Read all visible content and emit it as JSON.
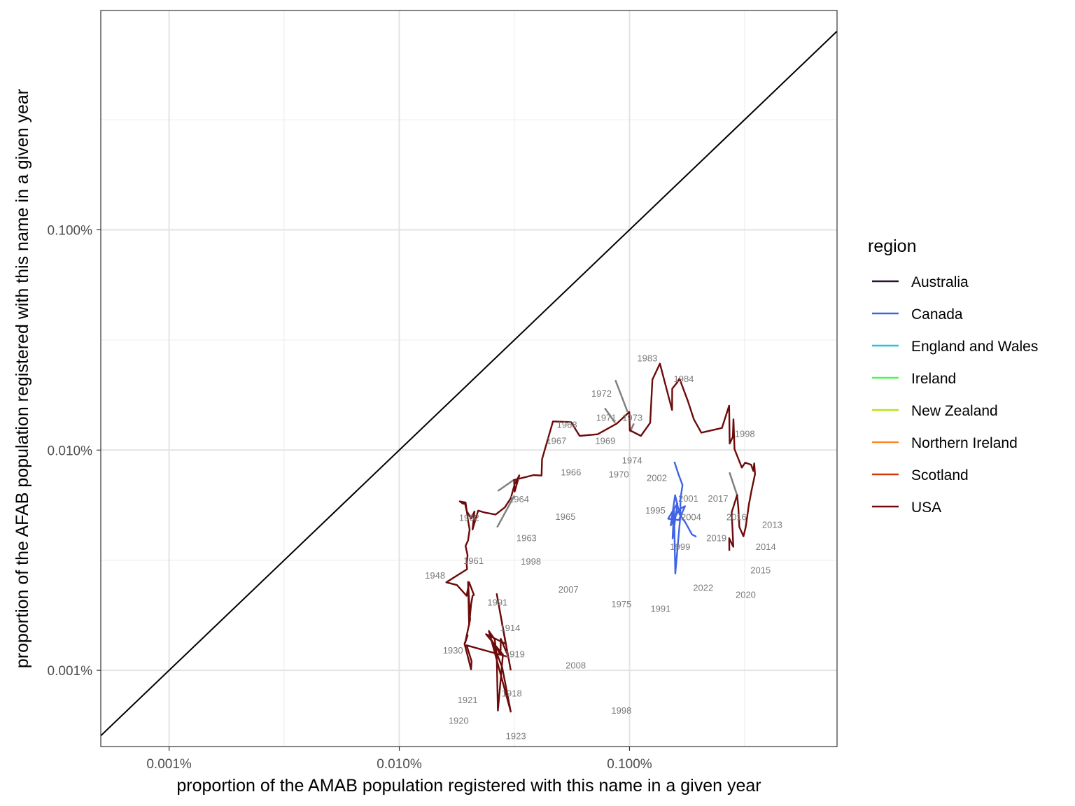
{
  "chart_data": {
    "type": "line",
    "xlabel": "proportion of the AMAB population registered with this name in a given year",
    "ylabel": "proportion of the AFAB population registered with this name in a given year",
    "x_scale": "log10",
    "y_scale": "log10",
    "xlim": [
      5.05e-06,
      0.00797
    ],
    "ylim": [
      4.51e-06,
      0.0099
    ],
    "x_ticks": [
      {
        "value": 1e-05,
        "label": "0.001%"
      },
      {
        "value": 0.0001,
        "label": "0.010%"
      },
      {
        "value": 0.001,
        "label": "0.100%"
      }
    ],
    "y_ticks": [
      {
        "value": 1e-05,
        "label": "0.001%"
      },
      {
        "value": 0.0001,
        "label": "0.010%"
      },
      {
        "value": 0.001,
        "label": "0.100%"
      }
    ],
    "x_minor": [
      3.16e-05,
      0.000316,
      0.00316
    ],
    "y_minor": [
      3.16e-05,
      0.000316,
      0.00316
    ],
    "grid": true,
    "reference_line": "y = x",
    "legend": {
      "title": "region",
      "position": "right",
      "entries": [
        {
          "name": "Australia",
          "color": "#2a1337"
        },
        {
          "name": "Canada",
          "color": "#3f63e6"
        },
        {
          "name": "England and Wales",
          "color": "#1fc6dc"
        },
        {
          "name": "Ireland",
          "color": "#4df55a"
        },
        {
          "name": "New Zealand",
          "color": "#b6e41c"
        },
        {
          "name": "Northern Ireland",
          "color": "#fb8a22"
        },
        {
          "name": "Scotland",
          "color": "#d53a0c"
        },
        {
          "name": "USA",
          "color": "#6d0a0a"
        }
      ]
    },
    "series": [
      {
        "name": "USA",
        "color": "#6d0a0a",
        "points": [
          [
            0.000305,
            1e-05
          ],
          [
            0.000265,
            2.22e-05
          ],
          [
            0.00029,
            1.32e-05
          ],
          [
            0.000238,
            1.46e-05
          ],
          [
            0.000282,
            1.18e-05
          ],
          [
            0.000268,
            6.57e-06
          ],
          [
            0.000265,
            1.14e-05
          ],
          [
            0.00026,
            1.38e-05
          ],
          [
            0.000245,
            1.51e-05
          ],
          [
            0.000305,
            6.49e-06
          ],
          [
            0.00028,
            1.03e-05
          ],
          [
            0.000252,
            1.37e-05
          ],
          [
            0.000275,
            1.18e-05
          ],
          [
            0.000276,
            1.39e-05
          ],
          [
            0.000298,
            1.15e-05
          ],
          [
            0.000196,
            1.3e-05
          ],
          [
            0.000206,
            1.1e-05
          ],
          [
            0.000205,
            1.01e-05
          ],
          [
            0.000197,
            1.19e-05
          ],
          [
            0.000192,
            1.32e-05
          ],
          [
            0.000198,
            1.44e-05
          ],
          [
            0.000193,
            1.33e-05
          ],
          [
            0.000203,
            1.7e-05
          ],
          [
            0.000199,
            2.52e-05
          ],
          [
            0.000201,
            1.6e-05
          ],
          [
            0.000205,
            1.99e-05
          ],
          [
            0.000208,
            2.18e-05
          ],
          [
            0.000211,
            2.2e-05
          ],
          [
            0.000201,
            2.51e-05
          ],
          [
            0.000196,
            2.18e-05
          ],
          [
            0.000178,
            2.44e-05
          ],
          [
            0.00016,
            2.51e-05
          ],
          [
            0.000197,
            2.88e-05
          ],
          [
            0.000196,
            3.05e-05
          ],
          [
            0.000198,
            3.33e-05
          ],
          [
            0.000194,
            3.67e-05
          ],
          [
            0.000199,
            3.89e-05
          ],
          [
            0.000202,
            4.36e-05
          ],
          [
            0.000199,
            4.78e-05
          ],
          [
            0.000198,
            4.99e-05
          ],
          [
            0.000194,
            5.78e-05
          ],
          [
            0.000183,
            5.85e-05
          ],
          [
            0.000189,
            5.71e-05
          ],
          [
            0.000193,
            5.71e-05
          ],
          [
            0.000196,
            5.3e-05
          ],
          [
            0.000205,
            4.89e-05
          ],
          [
            0.000212,
            5.26e-05
          ],
          [
            0.000208,
            4.36e-05
          ],
          [
            0.00022,
            5.31e-05
          ],
          [
            0.000234,
            5.21e-05
          ],
          [
            0.000262,
            5.1e-05
          ],
          [
            0.000287,
            5.49e-05
          ],
          [
            0.000305,
            6.04e-05
          ],
          [
            0.000317,
            7.01e-05
          ],
          [
            0.000332,
            7.68e-05
          ],
          [
            0.000317,
            6.48e-05
          ],
          [
            0.000315,
            7.31e-05
          ],
          [
            0.000383,
            7.7e-05
          ],
          [
            0.000415,
            7.66e-05
          ],
          [
            0.000417,
            9.09e-05
          ],
          [
            0.000465,
            0.000135
          ],
          [
            0.000557,
            0.000134
          ],
          [
            0.000607,
            0.000116
          ],
          [
            0.000727,
            0.000118
          ],
          [
            0.000882,
            0.000132
          ],
          [
            0.000998,
            0.000149
          ],
          [
            0.001003,
            0.000123
          ],
          [
            0.00112,
            0.000116
          ],
          [
            0.00123,
            0.000133
          ],
          [
            0.001257,
            0.000209
          ],
          [
            0.001355,
            0.000247
          ],
          [
            0.001531,
            0.000152
          ],
          [
            0.001533,
            0.00019
          ],
          [
            0.001601,
            0.000201
          ],
          [
            0.001649,
            0.000211
          ],
          [
            0.001789,
            0.000168
          ],
          [
            0.001903,
            0.000138
          ],
          [
            0.002051,
            0.00012
          ],
          [
            0.002519,
            0.000126
          ],
          [
            0.002708,
            0.000159
          ],
          [
            0.002723,
            0.000107
          ],
          [
            0.002811,
            0.000115
          ],
          [
            0.002829,
            0.000138
          ],
          [
            0.002859,
            0.000101
          ],
          [
            0.003077,
            8.33e-05
          ],
          [
            0.003182,
            8.77e-05
          ],
          [
            0.003374,
            8.58e-05
          ],
          [
            0.003451,
            8.04e-05
          ],
          [
            0.003482,
            8.7e-05
          ],
          [
            0.003509,
            7.77e-05
          ],
          [
            0.003385,
            6.53e-05
          ],
          [
            0.0033,
            5.65e-05
          ],
          [
            0.003198,
            4.47e-05
          ],
          [
            0.003126,
            4.06e-05
          ],
          [
            0.002999,
            4.48e-05
          ],
          [
            0.002971,
            5.46e-05
          ],
          [
            0.002934,
            6.25e-05
          ],
          [
            0.002779,
            5.22e-05
          ],
          [
            0.002825,
            3.64e-05
          ],
          [
            0.00271,
            3.98e-05
          ],
          [
            0.002714,
            3.49e-05
          ]
        ]
      },
      {
        "name": "Canada",
        "color": "#3f63e6",
        "points": [
          [
            0.001951,
            4.04e-05
          ],
          [
            0.001868,
            4.14e-05
          ],
          [
            0.001754,
            4.67e-05
          ],
          [
            0.00165,
            5.11e-05
          ],
          [
            0.001578,
            6.24e-05
          ],
          [
            0.001511,
            4.55e-05
          ],
          [
            0.001644,
            5.39e-05
          ],
          [
            0.001742,
            5.56e-05
          ],
          [
            0.001637,
            4.81e-05
          ],
          [
            0.001472,
            4.88e-05
          ],
          [
            0.001614,
            5.73e-05
          ],
          [
            0.001538,
            3.97e-05
          ],
          [
            0.00156,
            5.32e-05
          ],
          [
            0.001581,
            2.75e-05
          ],
          [
            0.001661,
            4.98e-05
          ],
          [
            0.001665,
            6.01e-05
          ],
          [
            0.001699,
            6.94e-05
          ],
          [
            0.001631,
            7.77e-05
          ],
          [
            0.001566,
            8.85e-05
          ]
        ]
      }
    ],
    "annotations": [
      {
        "text": "1983",
        "x": 0.001195,
        "y": 0.00026
      },
      {
        "text": "1984",
        "x": 0.00172,
        "y": 0.00021
      },
      {
        "text": "1972",
        "x": 0.000756,
        "y": 0.00018
      },
      {
        "text": "1973",
        "x": 0.00103,
        "y": 0.00014
      },
      {
        "text": "1971",
        "x": 0.000792,
        "y": 0.00014
      },
      {
        "text": "1968",
        "x": 0.000535,
        "y": 0.00013
      },
      {
        "text": "1969",
        "x": 0.000785,
        "y": 0.00011
      },
      {
        "text": "1967",
        "x": 0.000481,
        "y": 0.00011
      },
      {
        "text": "1998",
        "x": 0.003168,
        "y": 0.000118
      },
      {
        "text": "1974",
        "x": 0.001026,
        "y": 8.96e-05
      },
      {
        "text": "1966",
        "x": 0.000557,
        "y": 7.89e-05
      },
      {
        "text": "1970",
        "x": 0.000898,
        "y": 7.72e-05
      },
      {
        "text": "2002",
        "x": 0.001314,
        "y": 7.46e-05
      },
      {
        "text": "2001",
        "x": 0.0018,
        "y": 6.01e-05
      },
      {
        "text": "2017",
        "x": 0.002424,
        "y": 6.01e-05
      },
      {
        "text": "1964",
        "x": 0.000331,
        "y": 5.97e-05
      },
      {
        "text": "1995",
        "x": 0.001295,
        "y": 5.31e-05
      },
      {
        "text": "1962",
        "x": 0.000201,
        "y": 4.92e-05
      },
      {
        "text": "2004",
        "x": 0.001851,
        "y": 4.94e-05
      },
      {
        "text": "2016",
        "x": 0.002915,
        "y": 4.94e-05
      },
      {
        "text": "1965",
        "x": 0.000527,
        "y": 4.96e-05
      },
      {
        "text": "2013",
        "x": 0.004168,
        "y": 4.56e-05
      },
      {
        "text": "1963",
        "x": 0.000357,
        "y": 3.98e-05
      },
      {
        "text": "2019",
        "x": 0.002386,
        "y": 3.98e-05
      },
      {
        "text": "1999",
        "x": 0.00166,
        "y": 3.62e-05
      },
      {
        "text": "2014",
        "x": 0.003909,
        "y": 3.62e-05
      },
      {
        "text": "1961",
        "x": 0.00021,
        "y": 3.13e-05
      },
      {
        "text": "1998",
        "x": 0.000373,
        "y": 3.11e-05
      },
      {
        "text": "1948",
        "x": 0.000143,
        "y": 2.69e-05
      },
      {
        "text": "2015",
        "x": 0.003709,
        "y": 2.84e-05
      },
      {
        "text": "2007",
        "x": 0.000543,
        "y": 2.32e-05
      },
      {
        "text": "2022",
        "x": 0.002089,
        "y": 2.36e-05
      },
      {
        "text": "2020",
        "x": 0.003196,
        "y": 2.2e-05
      },
      {
        "text": "1975",
        "x": 0.000922,
        "y": 1.99e-05
      },
      {
        "text": "1991",
        "x": 0.000267,
        "y": 2.03e-05
      },
      {
        "text": "1991",
        "x": 0.001365,
        "y": 1.9e-05
      },
      {
        "text": "1914",
        "x": 0.000303,
        "y": 1.55e-05
      },
      {
        "text": "1930",
        "x": 0.000171,
        "y": 1.23e-05
      },
      {
        "text": "1919",
        "x": 0.000317,
        "y": 1.18e-05
      },
      {
        "text": "2008",
        "x": 0.000584,
        "y": 1.05e-05
      },
      {
        "text": "1918",
        "x": 0.000308,
        "y": 7.84e-06
      },
      {
        "text": "1921",
        "x": 0.000198,
        "y": 7.31e-06
      },
      {
        "text": "1920",
        "x": 0.000181,
        "y": 5.88e-06
      },
      {
        "text": "1998",
        "x": 0.000922,
        "y": 6.56e-06
      },
      {
        "text": "1923",
        "x": 0.000321,
        "y": 5.02e-06
      }
    ],
    "leader_lines": [
      [
        [
          0.000266,
          4.46e-05
        ],
        [
          0.000316,
          6.21e-05
        ]
      ],
      [
        [
          0.000268,
          6.52e-05
        ],
        [
          0.000316,
          7.35e-05
        ]
      ],
      [
        [
          0.000868,
          0.000208
        ],
        [
          0.000981,
          0.000149
        ]
      ],
      [
        [
          0.000781,
          0.000155
        ],
        [
          0.000866,
          0.000133
        ]
      ],
      [
        [
          0.001045,
          0.000132
        ],
        [
          0.001004,
          0.000121
        ]
      ],
      [
        [
          0.002718,
          7.92e-05
        ],
        [
          0.002944,
          6.17e-05
        ]
      ]
    ]
  }
}
